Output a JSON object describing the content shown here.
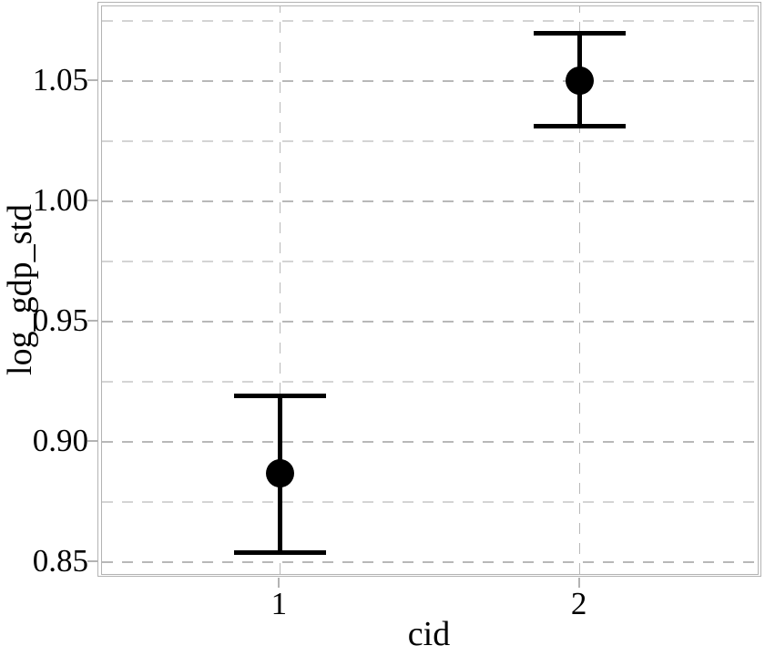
{
  "chart_data": {
    "type": "scatter",
    "subtype": "point-estimates-with-error-bars",
    "title": "",
    "xlabel": "cid",
    "ylabel": "log_gdp_std",
    "x_categories": [
      {
        "x": 1,
        "label": "1"
      },
      {
        "x": 2,
        "label": "2"
      }
    ],
    "points": [
      {
        "x": 1,
        "label": "1",
        "y": 0.887,
        "y_lo": 0.854,
        "y_hi": 0.919
      },
      {
        "x": 2,
        "label": "2",
        "y": 1.05,
        "y_lo": 1.031,
        "y_hi": 1.07
      }
    ],
    "error_cap_halfwidth_x": 0.15,
    "xlim": [
      0.407,
      2.593
    ],
    "ylim": [
      0.845,
      1.081
    ],
    "yticks_major": [
      {
        "value": 1.05,
        "label": "1.05"
      },
      {
        "value": 1.0,
        "label": "1.00"
      },
      {
        "value": 0.95,
        "label": "0.95"
      },
      {
        "value": 0.9,
        "label": "0.90"
      },
      {
        "value": 0.85,
        "label": "0.85"
      }
    ],
    "yticks_minor": [
      1.075,
      1.025,
      0.975,
      0.925,
      0.875
    ],
    "grid": {
      "horizontal": "major+minor",
      "vertical": "major",
      "style": "dashed"
    },
    "legend": "none",
    "colors": {
      "point": "#000000",
      "error_bar": "#000000",
      "grid_major": "#b8b8b8",
      "grid_minor": "#d4d4d4",
      "panel_border": "#b3b3b3",
      "tick": "#b3b3b3",
      "text": "#000000",
      "background": "#ffffff"
    }
  }
}
